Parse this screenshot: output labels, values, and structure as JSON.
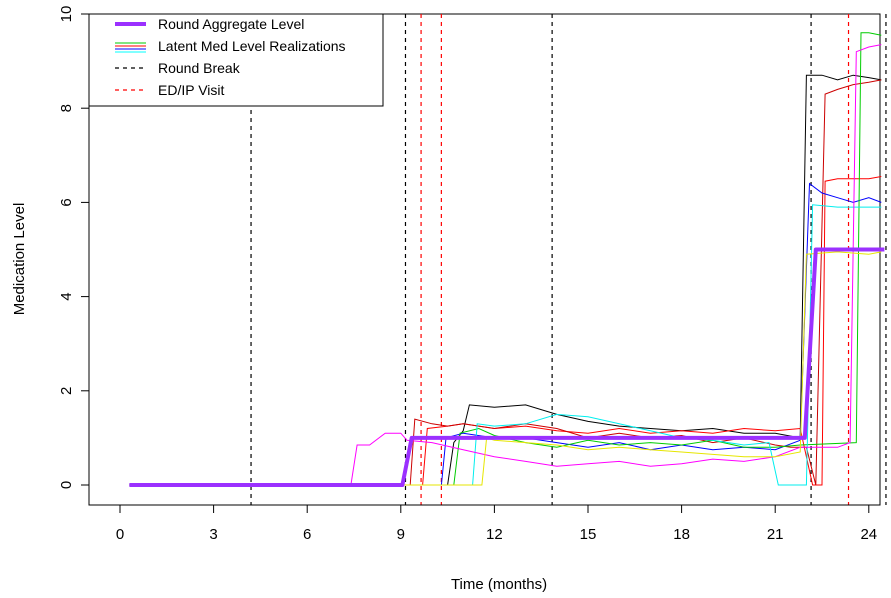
{
  "chart_data": {
    "type": "line",
    "xlabel": "Time (months)",
    "ylabel": "Medication Level",
    "xlim": [
      0,
      24.7
    ],
    "ylim": [
      0,
      10
    ],
    "xticks": [
      0,
      3,
      6,
      9,
      12,
      15,
      18,
      21,
      24
    ],
    "yticks": [
      0,
      2,
      4,
      6,
      8,
      10
    ],
    "grid": false,
    "legend_position": "top-left",
    "legend": [
      {
        "label": "Round Aggregate Level",
        "style": "thick-solid",
        "color": "#9b30ff"
      },
      {
        "label": "Latent Med Level Realizations",
        "style": "multi-solid",
        "colors": [
          "#00cc00",
          "#ff0000",
          "#0000ff",
          "#00ffff"
        ]
      },
      {
        "label": "Round Break",
        "style": "dashed",
        "color": "#000000"
      },
      {
        "label": "ED/IP Visit",
        "style": "dashed",
        "color": "#ff0000"
      }
    ],
    "round_breaks": [
      4.2,
      9.15,
      13.85,
      22.15,
      24.55
    ],
    "ed_ip_visits": [
      9.65,
      10.3,
      23.35
    ],
    "aggregate": {
      "name": "Round Aggregate Level",
      "color": "#9b30ff",
      "points": [
        [
          0.3,
          0
        ],
        [
          9.05,
          0
        ],
        [
          9.35,
          1
        ],
        [
          21.95,
          1
        ],
        [
          22.3,
          5
        ],
        [
          24.5,
          5
        ]
      ]
    },
    "series": [
      {
        "color": "#000000",
        "points": [
          [
            0.3,
            0
          ],
          [
            10.5,
            0
          ],
          [
            10.7,
            0.9
          ],
          [
            11,
            1.15
          ],
          [
            11.2,
            1.7
          ],
          [
            12,
            1.65
          ],
          [
            13,
            1.7
          ],
          [
            14,
            1.5
          ],
          [
            15,
            1.35
          ],
          [
            16,
            1.25
          ],
          [
            17,
            1.2
          ],
          [
            18,
            1.15
          ],
          [
            19,
            1.2
          ],
          [
            20,
            1.1
          ],
          [
            21,
            1.1
          ],
          [
            21.8,
            1.0
          ],
          [
            22.0,
            8.7
          ],
          [
            22.5,
            8.7
          ],
          [
            23,
            8.6
          ],
          [
            23.5,
            8.7
          ],
          [
            24,
            8.65
          ],
          [
            24.4,
            8.6
          ]
        ]
      },
      {
        "color": "#ff0000",
        "points": [
          [
            0.3,
            0
          ],
          [
            9.7,
            0
          ],
          [
            9.85,
            1.2
          ],
          [
            10.5,
            1.25
          ],
          [
            11,
            1.3
          ],
          [
            12,
            1.2
          ],
          [
            13,
            1.25
          ],
          [
            14,
            1.15
          ],
          [
            15,
            1.1
          ],
          [
            16,
            1.2
          ],
          [
            17,
            1.1
          ],
          [
            18,
            1.15
          ],
          [
            19,
            1.1
          ],
          [
            20,
            1.2
          ],
          [
            21,
            1.15
          ],
          [
            21.8,
            1.2
          ],
          [
            22.2,
            0
          ],
          [
            22.5,
            0
          ],
          [
            22.6,
            6.45
          ],
          [
            23,
            6.5
          ],
          [
            23.5,
            6.5
          ],
          [
            24,
            6.5
          ],
          [
            24.4,
            6.55
          ]
        ]
      },
      {
        "color": "#cc0000",
        "points": [
          [
            9.3,
            0
          ],
          [
            9.45,
            1.4
          ],
          [
            10,
            1.3
          ],
          [
            10.5,
            1.25
          ],
          [
            11,
            1.3
          ],
          [
            12,
            1.2
          ],
          [
            13,
            1.3
          ],
          [
            14,
            1.2
          ],
          [
            15,
            1.0
          ],
          [
            16,
            1.1
          ],
          [
            17,
            1.0
          ],
          [
            18,
            1.05
          ],
          [
            19,
            0.9
          ],
          [
            20,
            1.0
          ],
          [
            21,
            0.85
          ],
          [
            21.5,
            0.8
          ],
          [
            22,
            0.8
          ],
          [
            22.3,
            0
          ],
          [
            22.6,
            8.3
          ],
          [
            23,
            8.4
          ],
          [
            23.5,
            8.5
          ],
          [
            24,
            8.55
          ],
          [
            24.4,
            8.6
          ]
        ]
      },
      {
        "color": "#0000ff",
        "points": [
          [
            0.3,
            0
          ],
          [
            10.3,
            0
          ],
          [
            10.45,
            1.0
          ],
          [
            11,
            1.1
          ],
          [
            12,
            1.0
          ],
          [
            13,
            1.0
          ],
          [
            14,
            0.9
          ],
          [
            15,
            0.8
          ],
          [
            16,
            0.9
          ],
          [
            17,
            0.75
          ],
          [
            18,
            0.85
          ],
          [
            19,
            0.75
          ],
          [
            20,
            0.8
          ],
          [
            21,
            0.75
          ],
          [
            21.8,
            0.95
          ],
          [
            22.1,
            6.4
          ],
          [
            22.5,
            6.2
          ],
          [
            23,
            6.1
          ],
          [
            23.5,
            6.0
          ],
          [
            24,
            6.1
          ],
          [
            24.4,
            6.0
          ]
        ]
      },
      {
        "color": "#00cc00",
        "points": [
          [
            0.3,
            0
          ],
          [
            10.7,
            0
          ],
          [
            10.9,
            1.1
          ],
          [
            11.5,
            1.2
          ],
          [
            12,
            1.05
          ],
          [
            13,
            0.9
          ],
          [
            14,
            0.8
          ],
          [
            15,
            0.95
          ],
          [
            16,
            0.85
          ],
          [
            17,
            0.9
          ],
          [
            18,
            0.85
          ],
          [
            19,
            0.95
          ],
          [
            20,
            0.8
          ],
          [
            21,
            0.8
          ],
          [
            21.8,
            0.85
          ],
          [
            23.6,
            0.9
          ],
          [
            23.75,
            9.6
          ],
          [
            24,
            9.6
          ],
          [
            24.4,
            9.55
          ]
        ]
      },
      {
        "color": "#00eeee",
        "points": [
          [
            0.3,
            0
          ],
          [
            11.3,
            0
          ],
          [
            11.45,
            1.3
          ],
          [
            12,
            1.25
          ],
          [
            13,
            1.3
          ],
          [
            14,
            1.5
          ],
          [
            15,
            1.45
          ],
          [
            16,
            1.3
          ],
          [
            17,
            1.15
          ],
          [
            18,
            1.0
          ],
          [
            19,
            0.95
          ],
          [
            20,
            0.85
          ],
          [
            20.8,
            0.9
          ],
          [
            21.1,
            0
          ],
          [
            22.0,
            0
          ],
          [
            22.2,
            5.95
          ],
          [
            23,
            5.9
          ],
          [
            24,
            5.9
          ],
          [
            24.4,
            5.9
          ]
        ]
      },
      {
        "color": "#ff00ff",
        "points": [
          [
            0.3,
            0
          ],
          [
            7.4,
            0
          ],
          [
            7.6,
            0.85
          ],
          [
            8,
            0.85
          ],
          [
            8.5,
            1.1
          ],
          [
            9,
            1.1
          ],
          [
            9.2,
            0.95
          ],
          [
            10,
            0.9
          ],
          [
            11,
            0.75
          ],
          [
            12,
            0.6
          ],
          [
            13,
            0.5
          ],
          [
            14,
            0.4
          ],
          [
            15,
            0.45
          ],
          [
            16,
            0.5
          ],
          [
            17,
            0.4
          ],
          [
            18,
            0.45
          ],
          [
            19,
            0.55
          ],
          [
            20,
            0.5
          ],
          [
            21,
            0.6
          ],
          [
            21.8,
            0.8
          ],
          [
            23.0,
            0.8
          ],
          [
            23.4,
            0.9
          ],
          [
            23.6,
            9.2
          ],
          [
            24,
            9.3
          ],
          [
            24.4,
            9.35
          ]
        ]
      },
      {
        "color": "#e6e600",
        "points": [
          [
            0.3,
            0
          ],
          [
            11.6,
            0
          ],
          [
            11.75,
            1.0
          ],
          [
            12,
            0.95
          ],
          [
            13,
            0.9
          ],
          [
            14,
            0.85
          ],
          [
            15,
            0.75
          ],
          [
            16,
            0.8
          ],
          [
            17,
            0.75
          ],
          [
            18,
            0.7
          ],
          [
            19,
            0.65
          ],
          [
            20,
            0.6
          ],
          [
            21,
            0.6
          ],
          [
            21.8,
            0.7
          ],
          [
            22.0,
            4.9
          ],
          [
            23,
            4.95
          ],
          [
            24,
            4.9
          ],
          [
            24.4,
            4.95
          ]
        ]
      }
    ]
  }
}
